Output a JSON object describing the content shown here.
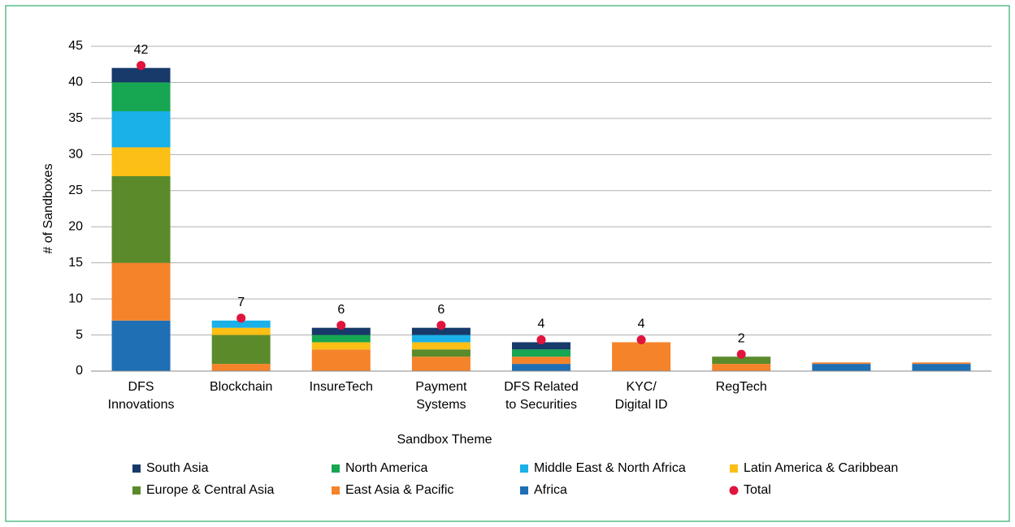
{
  "chart_data": {
    "type": "stacked_bar",
    "x_label": "Sandbox Theme",
    "y_label": "# of Sandboxes",
    "categories": [
      "DFS\nInnovations",
      "Blockchain",
      "InsureTech",
      "Payment\nSystems",
      "DFS Related\nto Securities",
      "KYC/\nDigital ID",
      "RegTech",
      null,
      null
    ],
    "series": [
      {
        "name": "South Asia",
        "color": "#173a6a",
        "values": [
          2,
          0,
          1,
          1,
          1,
          0,
          0,
          0,
          0
        ]
      },
      {
        "name": "North America",
        "color": "#17a651",
        "values": [
          4,
          0,
          1,
          0,
          1,
          0,
          0,
          0,
          0
        ]
      },
      {
        "name": "Middle East & North Africa",
        "color": "#1ab0e8",
        "values": [
          5,
          1,
          0,
          1,
          0,
          0,
          0,
          0,
          0
        ]
      },
      {
        "name": "Latin America & Caribbean",
        "color": "#fbbf16",
        "values": [
          4,
          1,
          1,
          1,
          0,
          0,
          0,
          0,
          0
        ]
      },
      {
        "name": "Europe & Central Asia",
        "color": "#5a8a2a",
        "values": [
          12,
          4,
          0,
          1,
          0,
          0,
          1,
          0,
          0
        ]
      },
      {
        "name": "East Asia & Pacific",
        "color": "#f5832a",
        "values": [
          8,
          1,
          3,
          2,
          1,
          4,
          1,
          0.2,
          0.2
        ]
      },
      {
        "name": "Africa",
        "color": "#1f6fb5",
        "values": [
          7,
          0,
          0,
          0,
          1,
          0,
          0,
          1,
          1
        ]
      }
    ],
    "total": {
      "name": "Total",
      "color": "#e0143c",
      "values": [
        42,
        7,
        6,
        6,
        4,
        4,
        2,
        null,
        null
      ]
    },
    "ylim": [
      0,
      45
    ],
    "yticks": [
      0,
      5,
      10,
      15,
      20,
      25,
      30,
      35,
      40,
      45
    ],
    "grid": true
  }
}
